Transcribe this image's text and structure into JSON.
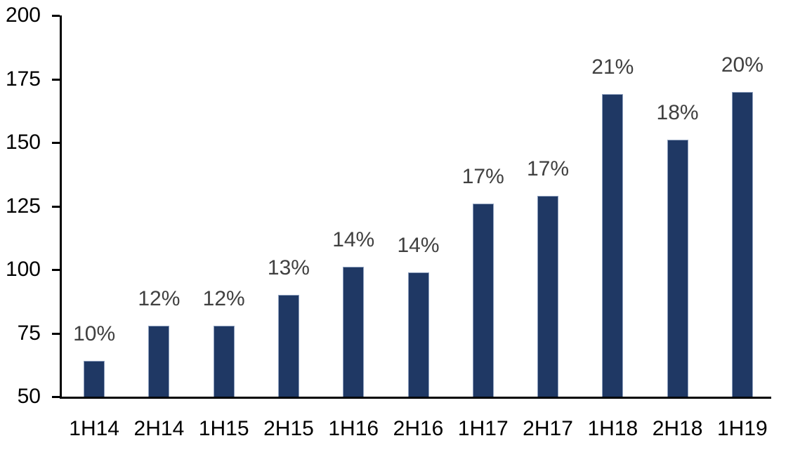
{
  "chart_data": {
    "type": "bar",
    "title": "",
    "xlabel": "",
    "ylabel": "",
    "categories": [
      "1H14",
      "2H14",
      "1H15",
      "2H15",
      "1H16",
      "2H16",
      "1H17",
      "2H17",
      "1H18",
      "2H18",
      "1H19"
    ],
    "values": [
      64,
      78,
      78,
      90,
      101,
      99,
      126,
      129,
      169,
      151,
      170
    ],
    "bar_labels": [
      "10%",
      "12%",
      "12%",
      "13%",
      "14%",
      "14%",
      "17%",
      "17%",
      "21%",
      "18%",
      "20%"
    ],
    "ylim": [
      50,
      200
    ],
    "yticks": [
      50,
      75,
      100,
      125,
      150,
      175,
      200
    ],
    "grid": false,
    "legend": "none",
    "colors": {
      "bar_fill": "#1F3864",
      "bar_border": "#8EA0BE",
      "data_label": "#404040",
      "axis": "#000000",
      "background": "#FFFFFF"
    }
  }
}
